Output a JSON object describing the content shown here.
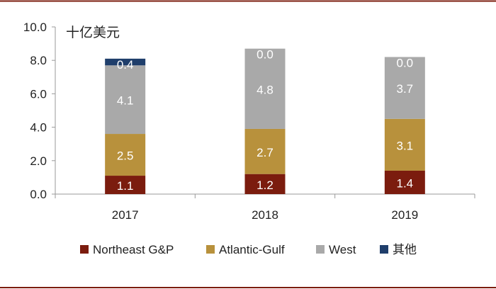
{
  "chart_data": {
    "type": "bar",
    "stacked": true,
    "unit_label": "十亿美元",
    "categories": [
      "2017",
      "2018",
      "2019"
    ],
    "ylim": [
      0,
      10
    ],
    "yticks": [
      "0.0",
      "2.0",
      "4.0",
      "6.0",
      "8.0",
      "10.0"
    ],
    "grid": false,
    "legend_position": "bottom",
    "series": [
      {
        "name": "Northeast G&P",
        "color": "#7b1c0e",
        "values": [
          1.1,
          1.2,
          1.4
        ],
        "labels": [
          "1.1",
          "1.2",
          "1.4"
        ]
      },
      {
        "name": "Atlantic-Gulf",
        "color": "#b8913c",
        "values": [
          2.5,
          2.7,
          3.1
        ],
        "labels": [
          "2.5",
          "2.7",
          "3.1"
        ]
      },
      {
        "name": "West",
        "color": "#a9a9a9",
        "values": [
          4.1,
          4.8,
          3.7
        ],
        "labels": [
          "4.1",
          "4.8",
          "3.7"
        ]
      },
      {
        "name": "其他",
        "color": "#1f3e6b",
        "values": [
          0.4,
          0.0,
          0.0
        ],
        "labels": [
          "0.4",
          "0.0",
          "0.0"
        ]
      }
    ]
  },
  "colors": {
    "frame_rule": "#7b1c0e",
    "axis": "#9a9a9a",
    "text": "#222222"
  }
}
